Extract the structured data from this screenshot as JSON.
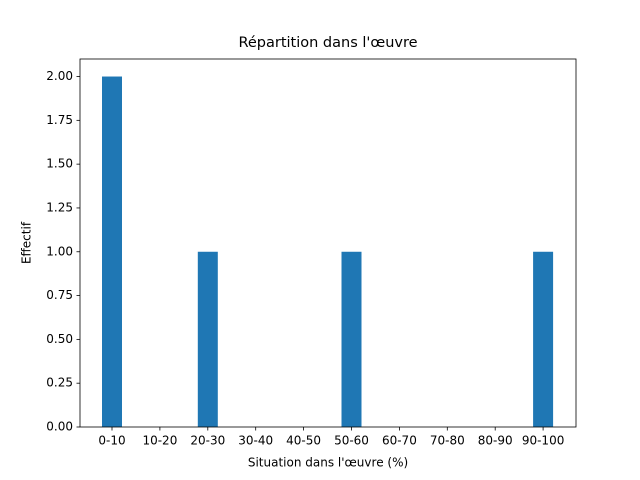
{
  "chart_data": {
    "type": "bar",
    "title": "Répartition dans l'œuvre",
    "x_label": "Situation dans l'œuvre (%)",
    "y_label": "Effectif",
    "categories": [
      "0-10",
      "10-20",
      "20-30",
      "30-40",
      "40-50",
      "50-60",
      "60-70",
      "70-80",
      "80-90",
      "90-100"
    ],
    "values": [
      2,
      0,
      1,
      0,
      0,
      1,
      0,
      0,
      0,
      1
    ],
    "color": "#1f77b4",
    "ylim": [
      0,
      2.1
    ],
    "yticks": [
      {
        "value": 0,
        "label": "0.00"
      },
      {
        "value": 0.25,
        "label": "0.25"
      },
      {
        "value": 0.5,
        "label": "0.50"
      },
      {
        "value": 0.75,
        "label": "0.75"
      },
      {
        "value": 1,
        "label": "1.00"
      },
      {
        "value": 1.25,
        "label": "1.25"
      },
      {
        "value": 1.5,
        "label": "1.50"
      },
      {
        "value": 1.75,
        "label": "1.75"
      },
      {
        "value": 2,
        "label": "2.00"
      }
    ],
    "grid": false
  }
}
